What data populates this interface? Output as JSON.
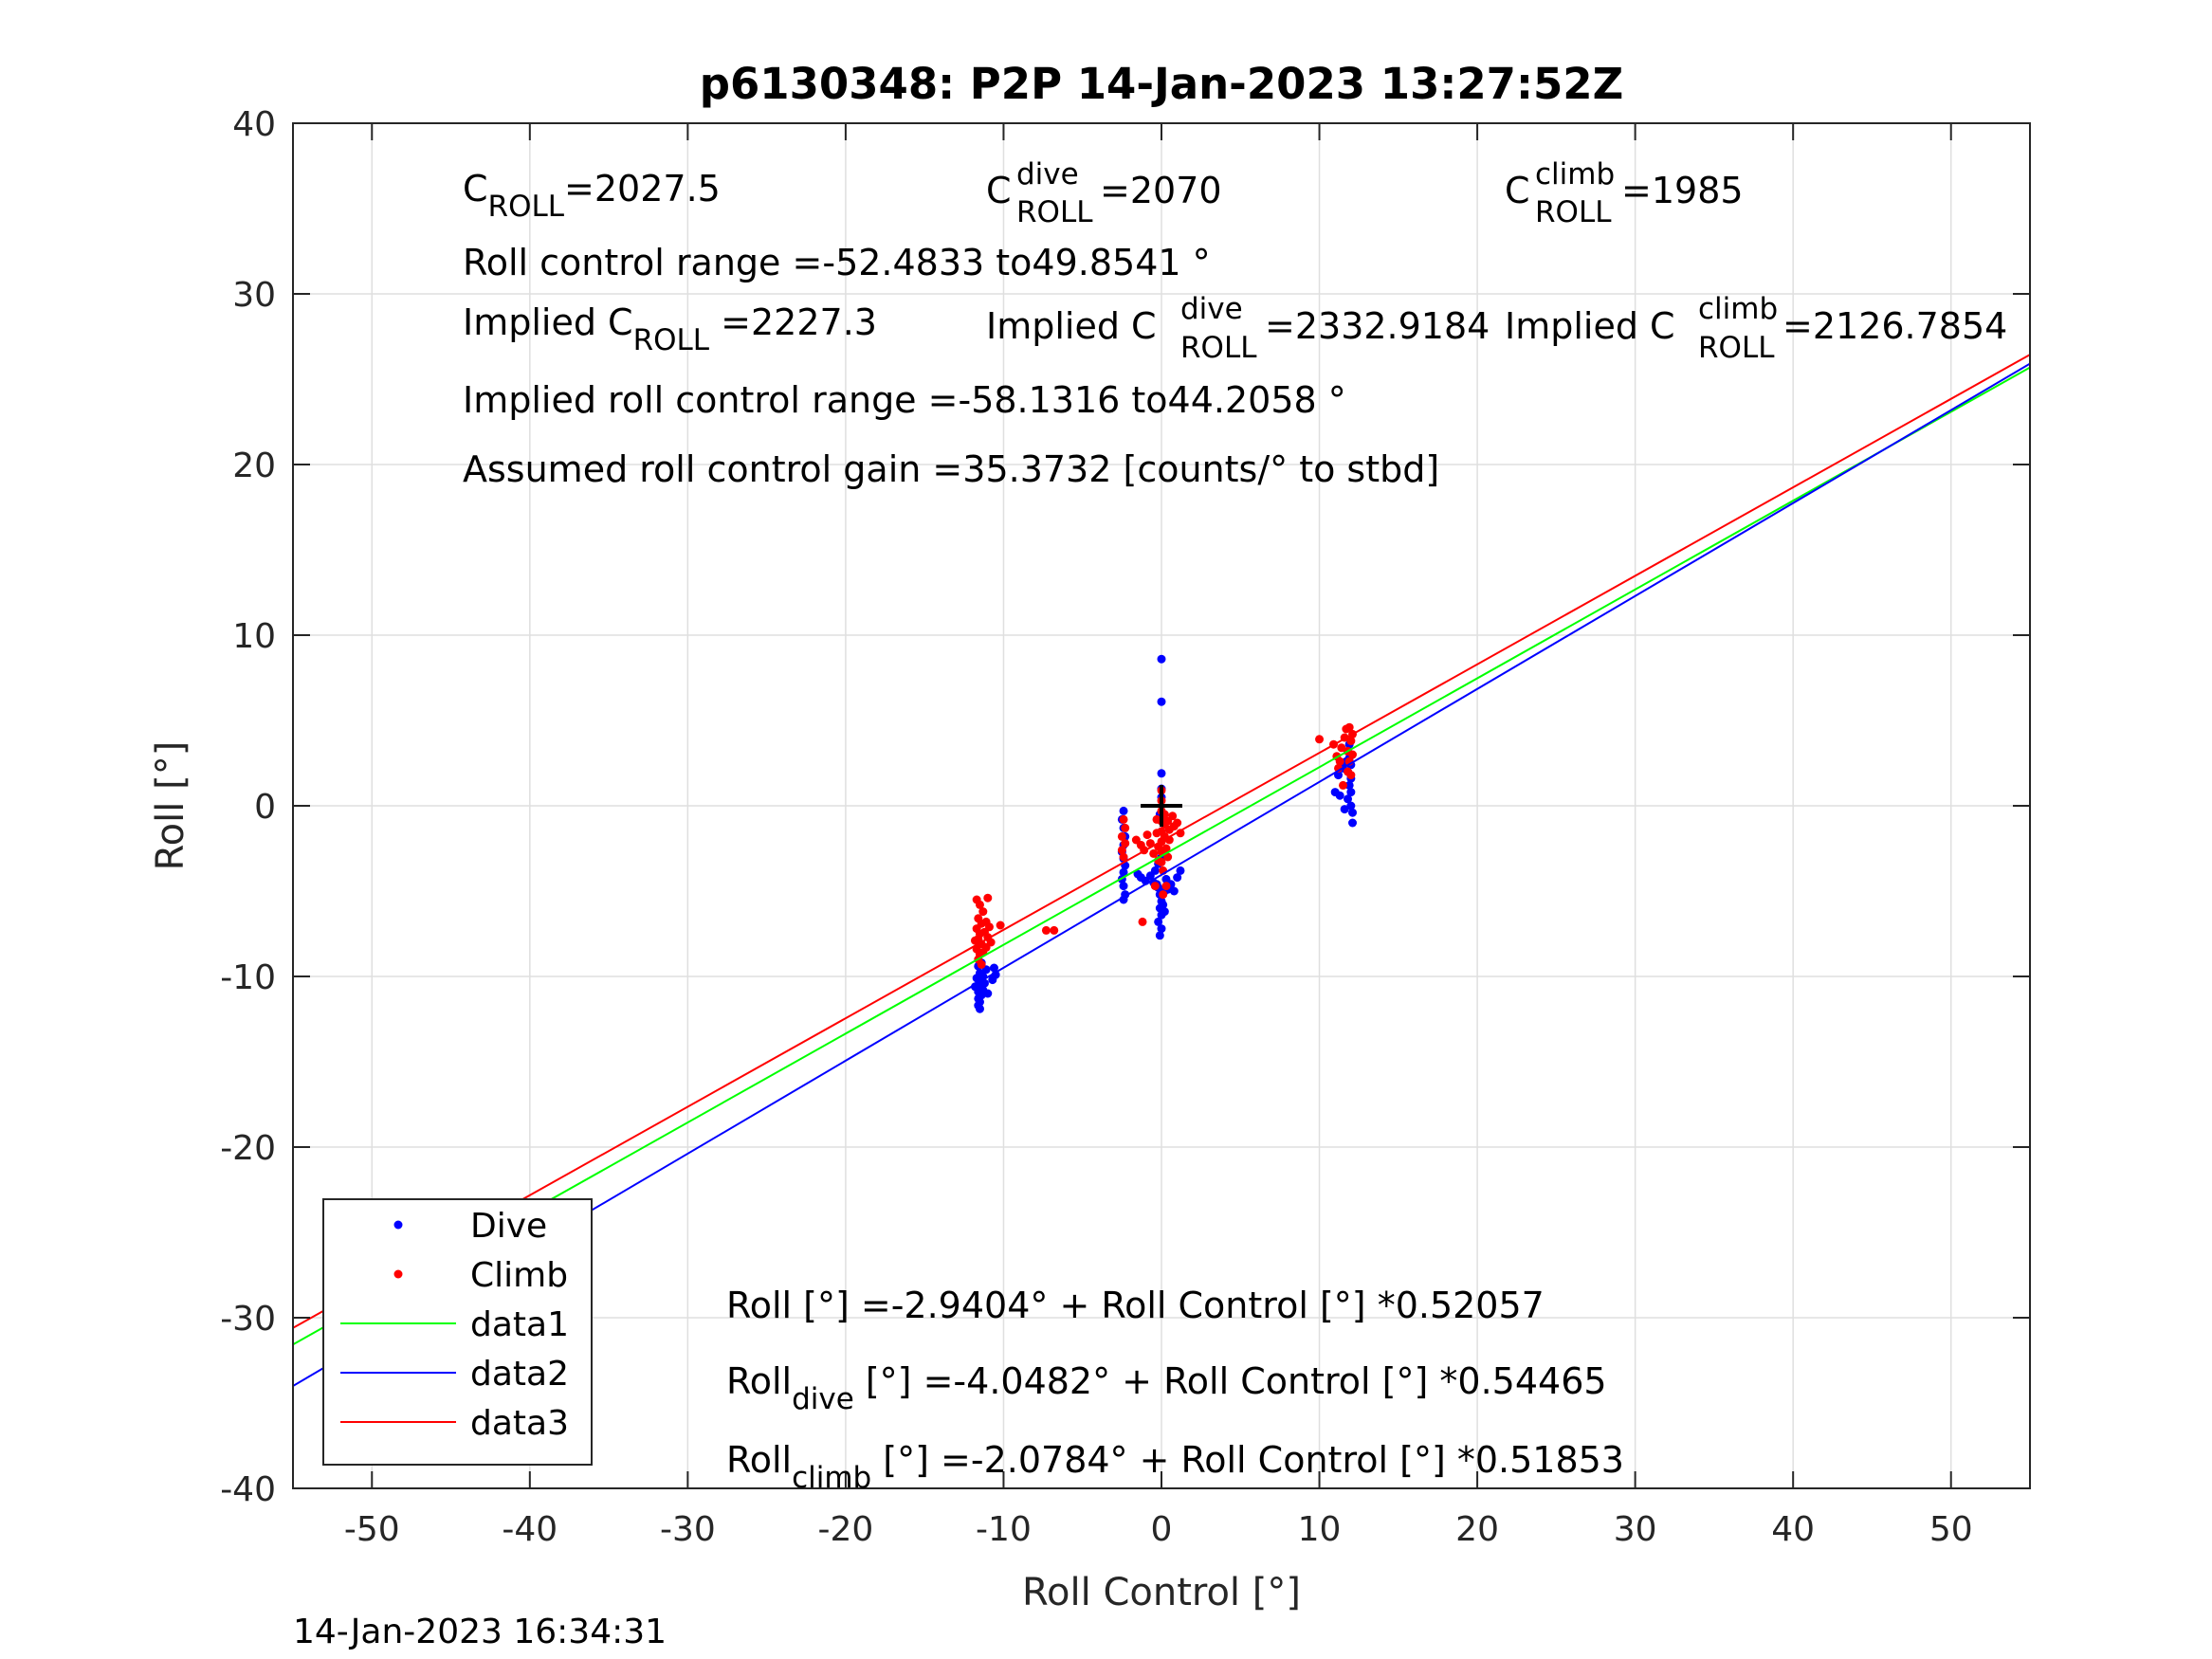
{
  "chart_data": {
    "type": "scatter",
    "title": "p6130348: P2P 14-Jan-2023 13:27:52Z",
    "xlabel": "Roll Control [°]",
    "ylabel": "Roll [°]",
    "xlim": [
      -55,
      55
    ],
    "ylim": [
      -40,
      40
    ],
    "xticks": [
      -50,
      -40,
      -30,
      -20,
      -10,
      0,
      10,
      20,
      30,
      40,
      50
    ],
    "yticks": [
      -40,
      -30,
      -20,
      -10,
      0,
      10,
      20,
      30,
      40
    ],
    "grid": true,
    "legend_position": "bottom-left",
    "timestamp": "14-Jan-2023 16:34:31",
    "annotations": {
      "c_roll": {
        "base": "C",
        "sub": "ROLL",
        "value": "=2027.5"
      },
      "c_roll_dive": {
        "base": "C",
        "sup": "dive",
        "sub": "ROLL",
        "value": " =2070"
      },
      "c_roll_climb": {
        "base": "C",
        "sup": "climb",
        "sub": "ROLL",
        "value": " =1985"
      },
      "roll_control_range": "Roll control range =-52.4833 to49.8541 °",
      "implied_c_roll": {
        "prefix": "Implied C",
        "sub": "ROLL",
        "value": " =2227.3"
      },
      "implied_c_roll_dive": {
        "prefix": "Implied C",
        "sup": "dive",
        "sub": "ROLL",
        "value": " =2332.9184"
      },
      "implied_c_roll_climb": {
        "prefix": "Implied C",
        "sup": "climb",
        "sub": "ROLL",
        "value": " =2126.7854"
      },
      "implied_range": "Implied roll control range =-58.1316 to44.2058 °",
      "gain": "Assumed roll control gain =35.3732 [counts/° to stbd]",
      "eq_all": "Roll [°] =-2.9404° + Roll Control [°] *0.52057",
      "eq_dive": {
        "base": "Roll",
        "sub": "dive",
        "rest": " [°] =-4.0482° + Roll Control [°] *0.54465"
      },
      "eq_climb": {
        "base": "Roll",
        "sub": "climb",
        "rest": " [°] =-2.0784° + Roll Control [°] *0.51853"
      }
    },
    "center_marker": {
      "x": 0,
      "y": 0
    },
    "series": [
      {
        "name": "Dive",
        "kind": "points",
        "color": "#0000ff",
        "points": [
          [
            -11.6,
            -9.4
          ],
          [
            -11.5,
            -9.8
          ],
          [
            -11.7,
            -10.1
          ],
          [
            -11.4,
            -10.3
          ],
          [
            -11.6,
            -10.5
          ],
          [
            -11.5,
            -10.7
          ],
          [
            -11.6,
            -10.9
          ],
          [
            -11.4,
            -11.1
          ],
          [
            -11.6,
            -11.3
          ],
          [
            -11.5,
            -11.5
          ],
          [
            -11.6,
            -11.7
          ],
          [
            -11.5,
            -11.9
          ],
          [
            -11.3,
            -10.8
          ],
          [
            -11.2,
            -10.4
          ],
          [
            -11.3,
            -10.0
          ],
          [
            -11.4,
            -9.2
          ],
          [
            -11.1,
            -9.6
          ],
          [
            -10.6,
            -9.5
          ],
          [
            -10.5,
            -9.9
          ],
          [
            -10.7,
            -10.2
          ],
          [
            -11.8,
            -10.6
          ],
          [
            -11.0,
            -11.0
          ],
          [
            -2.4,
            -0.3
          ],
          [
            -2.5,
            -0.8
          ],
          [
            -2.4,
            -1.3
          ],
          [
            -2.3,
            -1.8
          ],
          [
            -2.4,
            -2.3
          ],
          [
            -2.5,
            -2.7
          ],
          [
            -2.4,
            -3.1
          ],
          [
            -2.3,
            -3.5
          ],
          [
            -2.4,
            -3.9
          ],
          [
            -2.5,
            -4.3
          ],
          [
            -2.4,
            -4.7
          ],
          [
            -2.3,
            -5.2
          ],
          [
            -2.4,
            -5.5
          ],
          [
            -1.5,
            -4.0
          ],
          [
            -1.3,
            -4.2
          ],
          [
            -1.0,
            -4.4
          ],
          [
            -0.7,
            -4.1
          ],
          [
            -0.5,
            -4.5
          ],
          [
            -0.2,
            -4.8
          ],
          [
            -0.1,
            -5.2
          ],
          [
            0.0,
            -5.6
          ],
          [
            -0.1,
            -6.0
          ],
          [
            0.0,
            -6.4
          ],
          [
            -0.2,
            -6.8
          ],
          [
            0.0,
            -7.2
          ],
          [
            -0.1,
            -7.6
          ],
          [
            0.1,
            -5.8
          ],
          [
            0.2,
            -6.2
          ],
          [
            0.2,
            -5.0
          ],
          [
            0.4,
            -4.9
          ],
          [
            0.6,
            -4.6
          ],
          [
            0.8,
            -5.0
          ],
          [
            1.0,
            -4.2
          ],
          [
            1.2,
            -3.8
          ],
          [
            -0.2,
            -3.4
          ],
          [
            -0.4,
            -3.8
          ],
          [
            0.0,
            -3.0
          ],
          [
            0.0,
            -1.5
          ],
          [
            -0.1,
            -0.5
          ],
          [
            0.0,
            0.5
          ],
          [
            0.0,
            1.0
          ],
          [
            0.0,
            1.9
          ],
          [
            0.0,
            6.1
          ],
          [
            0.0,
            8.6
          ],
          [
            0.3,
            -4.3
          ],
          [
            -0.3,
            -4.6
          ],
          [
            11.8,
            3.2
          ],
          [
            11.9,
            2.8
          ],
          [
            12.0,
            2.4
          ],
          [
            11.8,
            2.0
          ],
          [
            12.0,
            1.6
          ],
          [
            11.9,
            1.2
          ],
          [
            12.0,
            0.8
          ],
          [
            11.8,
            0.4
          ],
          [
            12.0,
            0.0
          ],
          [
            12.1,
            -0.4
          ],
          [
            12.1,
            -1.0
          ],
          [
            11.6,
            -0.2
          ],
          [
            11.3,
            0.6
          ],
          [
            11.0,
            0.8
          ],
          [
            11.2,
            1.8
          ],
          [
            11.5,
            2.2
          ],
          [
            11.7,
            2.6
          ],
          [
            11.9,
            3.6
          ]
        ]
      },
      {
        "name": "Climb",
        "kind": "points",
        "color": "#ff0000",
        "points": [
          [
            -11.7,
            -5.5
          ],
          [
            -11.5,
            -5.8
          ],
          [
            -11.3,
            -6.2
          ],
          [
            -11.6,
            -6.6
          ],
          [
            -11.4,
            -6.9
          ],
          [
            -11.7,
            -7.2
          ],
          [
            -11.5,
            -7.5
          ],
          [
            -11.6,
            -7.8
          ],
          [
            -11.4,
            -8.1
          ],
          [
            -11.7,
            -8.4
          ],
          [
            -11.5,
            -8.7
          ],
          [
            -11.6,
            -9.0
          ],
          [
            -11.4,
            -9.3
          ],
          [
            -11.2,
            -7.4
          ],
          [
            -11.0,
            -7.7
          ],
          [
            -10.8,
            -8.0
          ],
          [
            -11.1,
            -8.3
          ],
          [
            -10.9,
            -7.1
          ],
          [
            -11.1,
            -6.8
          ],
          [
            -10.2,
            -7.0
          ],
          [
            -11.0,
            -5.4
          ],
          [
            -11.8,
            -7.9
          ],
          [
            -11.3,
            -8.6
          ],
          [
            -7.3,
            -7.3
          ],
          [
            -6.8,
            -7.3
          ],
          [
            -2.4,
            -0.8
          ],
          [
            -2.3,
            -1.3
          ],
          [
            -2.5,
            -1.8
          ],
          [
            -2.3,
            -2.2
          ],
          [
            -2.5,
            -2.6
          ],
          [
            -2.4,
            -3.0
          ],
          [
            -1.6,
            -2.0
          ],
          [
            -1.3,
            -2.3
          ],
          [
            -1.1,
            -2.6
          ],
          [
            -0.9,
            -1.7
          ],
          [
            -0.7,
            -2.2
          ],
          [
            -0.5,
            -2.8
          ],
          [
            -0.3,
            -0.8
          ],
          [
            -0.3,
            -1.6
          ],
          [
            -0.2,
            -2.4
          ],
          [
            -0.2,
            -3.2
          ],
          [
            0.0,
            0.9
          ],
          [
            0.0,
            0.3
          ],
          [
            0.0,
            -0.3
          ],
          [
            0.0,
            -0.9
          ],
          [
            0.0,
            -1.5
          ],
          [
            0.0,
            -2.1
          ],
          [
            0.0,
            -2.7
          ],
          [
            0.0,
            -3.3
          ],
          [
            0.1,
            -3.8
          ],
          [
            0.2,
            -0.5
          ],
          [
            0.2,
            -1.1
          ],
          [
            0.2,
            -1.8
          ],
          [
            0.3,
            -2.5
          ],
          [
            0.4,
            -0.9
          ],
          [
            0.5,
            -1.4
          ],
          [
            0.5,
            -2.0
          ],
          [
            0.7,
            -0.6
          ],
          [
            0.8,
            -1.2
          ],
          [
            1.0,
            -1.0
          ],
          [
            1.2,
            -1.6
          ],
          [
            0.4,
            -3.0
          ],
          [
            -1.2,
            -6.8
          ],
          [
            -0.4,
            -4.7
          ],
          [
            0.3,
            -4.7
          ],
          [
            0.1,
            -5.2
          ],
          [
            10.0,
            3.9
          ],
          [
            10.9,
            3.6
          ],
          [
            11.1,
            2.9
          ],
          [
            11.2,
            2.2
          ],
          [
            11.4,
            3.4
          ],
          [
            11.6,
            4.0
          ],
          [
            11.7,
            4.5
          ],
          [
            11.8,
            3.2
          ],
          [
            11.9,
            2.6
          ],
          [
            12.0,
            3.8
          ],
          [
            12.1,
            4.2
          ],
          [
            12.0,
            1.8
          ],
          [
            11.8,
            2.0
          ],
          [
            11.5,
            1.2
          ],
          [
            11.3,
            2.6
          ],
          [
            11.9,
            4.6
          ],
          [
            12.1,
            3.0
          ]
        ]
      },
      {
        "name": "data1",
        "kind": "line",
        "color": "#00ff00",
        "x": [
          -55,
          55
        ],
        "y": [
          -31.57,
          25.69
        ]
      },
      {
        "name": "data2",
        "kind": "line",
        "color": "#0000ff",
        "x": [
          -55,
          55
        ],
        "y": [
          -34.0,
          25.91
        ]
      },
      {
        "name": "data3",
        "kind": "line",
        "color": "#ff0000",
        "x": [
          -55,
          55
        ],
        "y": [
          -30.6,
          26.44
        ]
      }
    ]
  }
}
